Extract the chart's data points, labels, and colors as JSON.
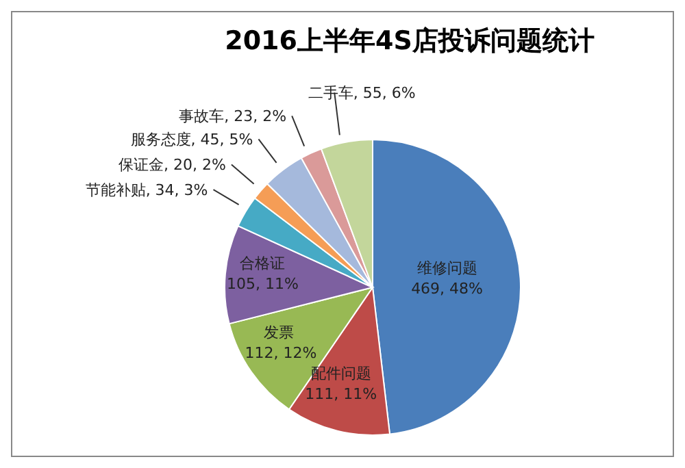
{
  "chart_data": {
    "type": "pie",
    "title": "2016上半年4S店投诉问题统计",
    "categories": [
      "维修问题",
      "配件问题",
      "发票 ",
      "合格证",
      "节能补贴",
      "保证金",
      "服务态度",
      "事故车",
      "二手车"
    ],
    "values": [
      469,
      111,
      112,
      105,
      34,
      20,
      45,
      23,
      55
    ],
    "value_labels": [
      "469, 48%",
      "111, 11%",
      "112, 12%",
      "105, 11%",
      "34, 3%",
      "20, 2%",
      "45, 5%",
      "23, 2%",
      "55, 6%"
    ],
    "colors": [
      "#4a7ebb",
      "#be4b48",
      "#98b954",
      "#7d60a0",
      "#46aac5",
      "#f59d56",
      "#a5b9dc",
      "#da9a99",
      "#c3d69b"
    ]
  }
}
